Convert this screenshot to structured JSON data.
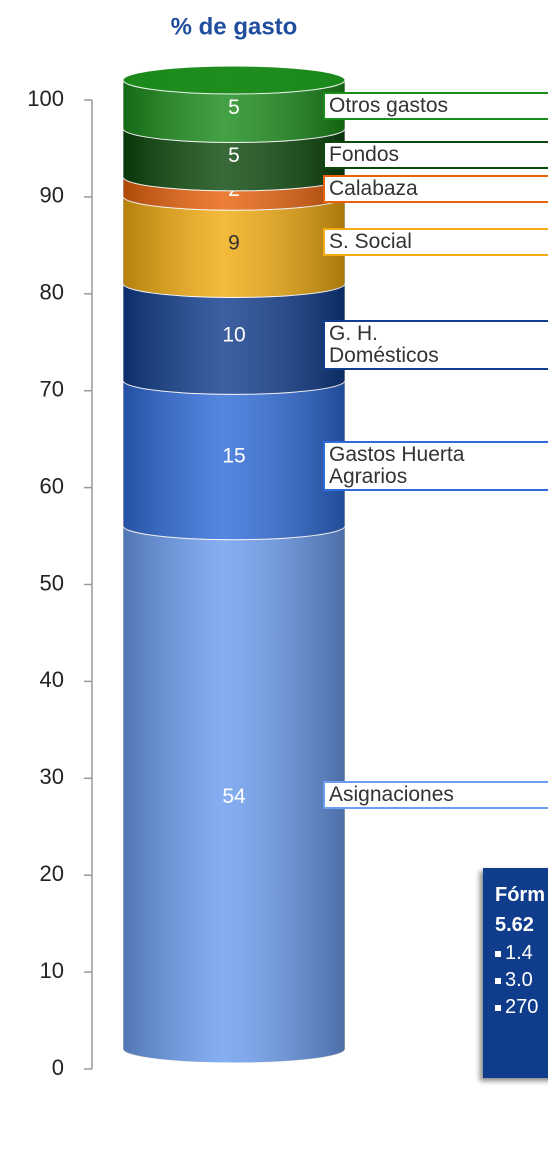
{
  "chart_data": {
    "type": "stacked_cylinder",
    "title": "% de gasto",
    "categories": [
      null
    ],
    "series": [
      {
        "name": "Asignaciones",
        "color": "#6b9df0",
        "label_color": "#ffffff",
        "values": [
          54
        ]
      },
      {
        "name": "Gastos Huerta Agrarios",
        "color": "#2f6bd9",
        "label_color": "#ffffff",
        "values": [
          15
        ]
      },
      {
        "name": "G. H. Domésticos",
        "color": "#103c8c",
        "label_color": "#ffffff",
        "values": [
          10
        ]
      },
      {
        "name": "S. Social",
        "color": "#f2ab10",
        "label_color": "#333333",
        "values": [
          9
        ]
      },
      {
        "name": "Calabaza",
        "color": "#e8620c",
        "label_color": "#ffffff",
        "values": [
          2
        ]
      },
      {
        "name": "Fondos",
        "color": "#0c480c",
        "label_color": "#ffffff",
        "values": [
          5
        ]
      },
      {
        "name": "Otros gastos",
        "color": "#1b8c1b",
        "label_color": "#ffffff",
        "values": [
          5
        ]
      }
    ],
    "ylim": [
      0,
      100
    ],
    "yticks": [
      0,
      10,
      20,
      30,
      40,
      50,
      60,
      70,
      80,
      90,
      100
    ]
  },
  "formula_box": {
    "lines": [
      "Fórm",
      "5.62"
    ],
    "bullets": [
      "1.4",
      "3.0",
      "270"
    ]
  }
}
